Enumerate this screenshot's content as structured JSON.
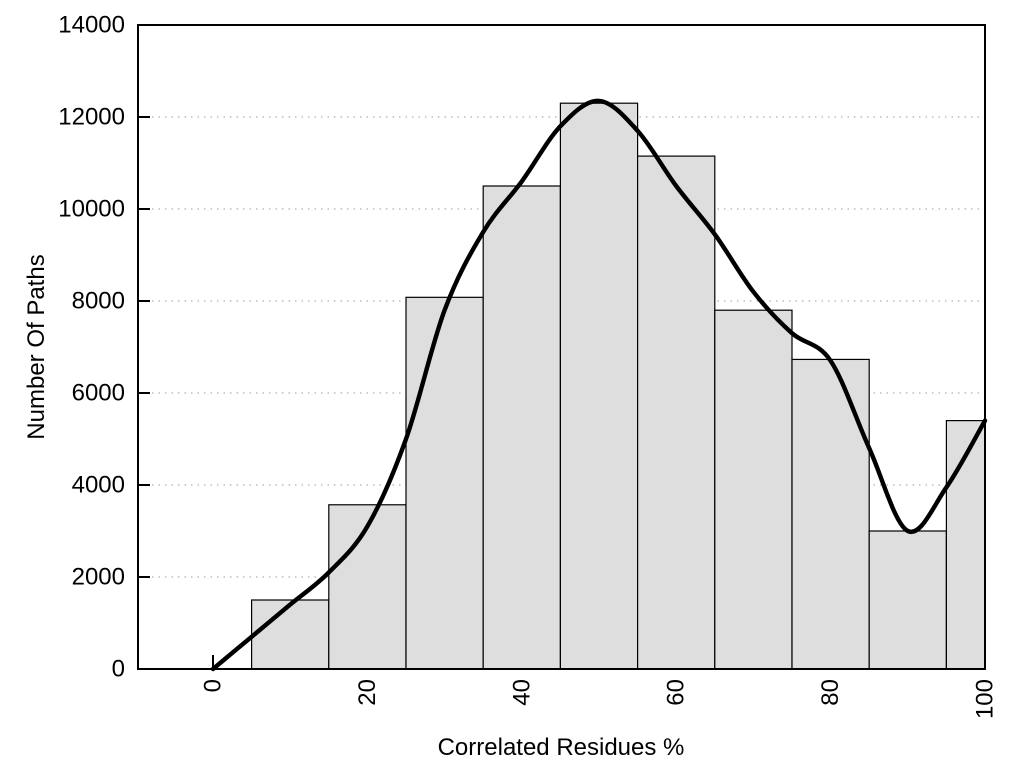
{
  "chart_data": {
    "type": "histogram+line",
    "title": "",
    "xlabel": "Correlated Residues %",
    "ylabel": "Number Of Paths",
    "x_axis": {
      "ticks": [
        0,
        20,
        40,
        60,
        80,
        100
      ],
      "tick_labels": [
        "0",
        "20",
        "40",
        "60",
        "80",
        "100"
      ],
      "label_rotation_deg": -90
    },
    "y_axis": {
      "ticks": [
        0,
        2000,
        4000,
        6000,
        8000,
        10000,
        12000,
        14000
      ],
      "tick_labels": [
        "0",
        "2000",
        "4000",
        "6000",
        "8000",
        "10000",
        "12000",
        "14000"
      ],
      "range": [
        0,
        14000
      ],
      "grid": "dotted horizontal lines at 2000..12000"
    },
    "bars": {
      "bin_edges": [
        5,
        15,
        25,
        35,
        45,
        55,
        65,
        75,
        85,
        95,
        100
      ],
      "values": [
        1500,
        3570,
        8080,
        10500,
        12300,
        11150,
        7800,
        6730,
        3000,
        5400
      ]
    },
    "curve": {
      "points": [
        [
          0,
          0
        ],
        [
          5,
          700
        ],
        [
          10,
          1400
        ],
        [
          15,
          2100
        ],
        [
          20,
          3100
        ],
        [
          25,
          5000
        ],
        [
          30,
          7800
        ],
        [
          35,
          9500
        ],
        [
          40,
          10600
        ],
        [
          45,
          11800
        ],
        [
          50,
          12350
        ],
        [
          55,
          11700
        ],
        [
          60,
          10500
        ],
        [
          65,
          9450
        ],
        [
          70,
          8200
        ],
        [
          75,
          7300
        ],
        [
          80,
          6700
        ],
        [
          85,
          4800
        ],
        [
          90,
          3000
        ],
        [
          95,
          3950
        ],
        [
          100,
          5400
        ]
      ]
    },
    "colors": {
      "background": "#ffffff",
      "bar_fill": "#dedede",
      "bar_stroke": "#000000",
      "curve": "#000000",
      "grid": "#bbbbbb",
      "axis": "#000000",
      "text": "#000000"
    }
  }
}
